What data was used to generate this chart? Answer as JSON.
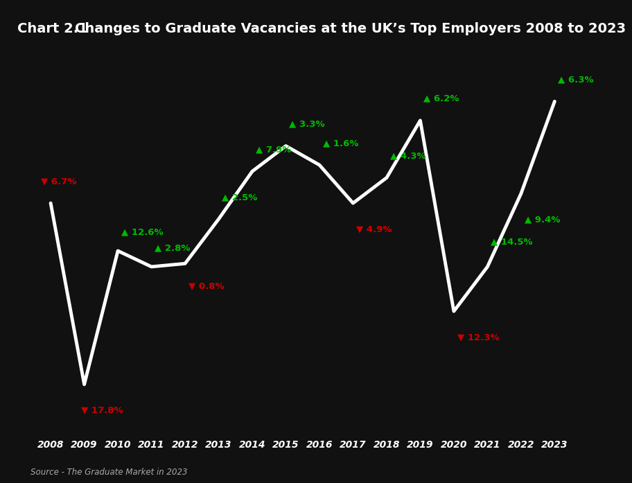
{
  "title_prefix": "Chart 2.1",
  "title_main": "Changes to Graduate Vacancies at the UK’s Top Employers 2008 to 2023",
  "source_text": "Source - The Graduate Market in 2023",
  "years": [
    2008,
    2009,
    2010,
    2011,
    2012,
    2013,
    2014,
    2015,
    2016,
    2017,
    2018,
    2019,
    2020,
    2021,
    2022,
    2023
  ],
  "y_values": [
    62,
    5,
    47,
    42,
    43,
    57,
    72,
    80,
    74,
    62,
    70,
    88,
    28,
    42,
    65,
    94
  ],
  "changes": [
    -6.7,
    -17.8,
    12.6,
    2.8,
    -0.8,
    2.5,
    7.9,
    3.3,
    1.6,
    -4.9,
    4.3,
    6.2,
    -12.3,
    14.5,
    9.4,
    6.3
  ],
  "bg_color": "#111111",
  "line_color": "#ffffff",
  "title_bg_color": "#cc0000",
  "title_text_color": "#ffffff",
  "up_color": "#00bb00",
  "down_color": "#cc0000",
  "source_color": "#aaaaaa",
  "axis_label_color": "#ffffff",
  "label_offsets": [
    [
      -0.3,
      7,
      "left"
    ],
    [
      -0.1,
      -8,
      "left"
    ],
    [
      0.1,
      6,
      "left"
    ],
    [
      0.1,
      6,
      "left"
    ],
    [
      0.1,
      -7,
      "left"
    ],
    [
      0.1,
      7,
      "left"
    ],
    [
      0.1,
      7,
      "left"
    ],
    [
      0.1,
      7,
      "left"
    ],
    [
      0.1,
      7,
      "left"
    ],
    [
      0.1,
      -8,
      "left"
    ],
    [
      0.1,
      7,
      "left"
    ],
    [
      0.1,
      7,
      "left"
    ],
    [
      0.1,
      -8,
      "left"
    ],
    [
      0.1,
      8,
      "left"
    ],
    [
      0.1,
      -8,
      "left"
    ],
    [
      0.1,
      7,
      "left"
    ]
  ]
}
